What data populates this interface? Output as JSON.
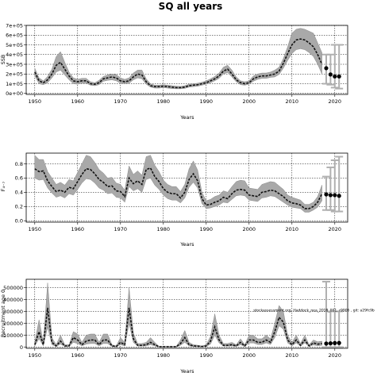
{
  "title": "SQ all years",
  "chart_data": [
    {
      "type": "line",
      "ylabel": "SSB",
      "xlabel": "Years",
      "xlim": [
        1948,
        2023
      ],
      "ylim": [
        -10000,
        700000
      ],
      "xticks": [
        "1950",
        "2000",
        "2010",
        "2020"
      ],
      "xtick_values": [
        1950,
        1960,
        1970,
        1980,
        1990,
        2000,
        2010,
        2020
      ],
      "xtick_labels": [
        "1950",
        "1960",
        "1970",
        "1980",
        "1990",
        "2000",
        "2010",
        "2020"
      ],
      "ytick_values": [
        0,
        100000,
        200000,
        300000,
        400000,
        500000,
        600000,
        700000
      ],
      "ytick_labels": [
        "0e+00",
        "1e+05",
        "2e+05",
        "3e+05",
        "4e+05",
        "5e+05",
        "6e+05",
        "7e+05"
      ],
      "grid": true,
      "x": [
        1950,
        1951,
        1952,
        1953,
        1954,
        1955,
        1956,
        1957,
        1958,
        1959,
        1960,
        1961,
        1962,
        1963,
        1964,
        1965,
        1966,
        1967,
        1968,
        1969,
        1970,
        1971,
        1972,
        1973,
        1974,
        1975,
        1976,
        1977,
        1978,
        1979,
        1980,
        1981,
        1982,
        1983,
        1984,
        1985,
        1986,
        1987,
        1988,
        1989,
        1990,
        1991,
        1992,
        1993,
        1994,
        1995,
        1996,
        1997,
        1998,
        1999,
        2000,
        2001,
        2002,
        2003,
        2004,
        2005,
        2006,
        2007,
        2008,
        2009,
        2010,
        2011,
        2012,
        2013,
        2014,
        2015,
        2016,
        2017
      ],
      "series": [
        {
          "values": [
            220000,
            130000,
            110000,
            140000,
            200000,
            290000,
            320000,
            250000,
            180000,
            130000,
            120000,
            130000,
            130000,
            100000,
            95000,
            110000,
            150000,
            160000,
            170000,
            160000,
            130000,
            120000,
            130000,
            170000,
            200000,
            190000,
            120000,
            80000,
            70000,
            70000,
            75000,
            70000,
            65000,
            60000,
            60000,
            65000,
            80000,
            85000,
            90000,
            100000,
            110000,
            130000,
            150000,
            180000,
            230000,
            250000,
            200000,
            140000,
            110000,
            100000,
            110000,
            150000,
            170000,
            180000,
            180000,
            190000,
            200000,
            230000,
            310000,
            410000,
            500000,
            550000,
            560000,
            550000,
            520000,
            480000,
            400000,
            300000
          ],
          "lower": [
            180000,
            100000,
            90000,
            110000,
            160000,
            220000,
            240000,
            190000,
            140000,
            100000,
            95000,
            105000,
            105000,
            85000,
            80000,
            90000,
            125000,
            135000,
            140000,
            130000,
            105000,
            100000,
            105000,
            140000,
            160000,
            150000,
            95000,
            65000,
            55000,
            55000,
            60000,
            55000,
            50000,
            48000,
            48000,
            52000,
            65000,
            70000,
            75000,
            85000,
            95000,
            110000,
            130000,
            155000,
            200000,
            215000,
            170000,
            120000,
            90000,
            85000,
            95000,
            125000,
            145000,
            155000,
            155000,
            165000,
            170000,
            195000,
            260000,
            340000,
            410000,
            450000,
            460000,
            450000,
            420000,
            380000,
            300000,
            200000
          ],
          "upper": [
            260000,
            160000,
            130000,
            175000,
            250000,
            380000,
            430000,
            320000,
            220000,
            160000,
            145000,
            155000,
            155000,
            120000,
            110000,
            135000,
            175000,
            190000,
            200000,
            195000,
            160000,
            145000,
            160000,
            210000,
            240000,
            240000,
            150000,
            100000,
            85000,
            85000,
            90000,
            85000,
            80000,
            75000,
            72000,
            80000,
            95000,
            100000,
            105000,
            115000,
            130000,
            150000,
            175000,
            210000,
            270000,
            290000,
            240000,
            170000,
            130000,
            120000,
            130000,
            180000,
            200000,
            210000,
            210000,
            220000,
            240000,
            270000,
            360000,
            480000,
            620000,
            660000,
            670000,
            660000,
            640000,
            620000,
            520000,
            420000
          ]
        }
      ],
      "projection": {
        "x": [
          2018,
          2019,
          2020,
          2021
        ],
        "values": [
          260000,
          195000,
          175000,
          175000
        ],
        "lower": [
          100000,
          90000,
          60000,
          50000
        ],
        "upper": [
          400000,
          400000,
          500000,
          500000
        ]
      }
    },
    {
      "type": "line",
      "ylabel": "F₄₋₇",
      "xlabel": "Years",
      "xlim": [
        1948,
        2023
      ],
      "ylim": [
        -0.02,
        0.95
      ],
      "xtick_values": [
        1950,
        1960,
        1970,
        1980,
        1990,
        2000,
        2010,
        2020
      ],
      "xtick_labels": [
        "1950",
        "1960",
        "1970",
        "1980",
        "1990",
        "2000",
        "2010",
        "2020"
      ],
      "ytick_values": [
        0.0,
        0.2,
        0.4,
        0.6,
        0.8
      ],
      "ytick_labels": [
        "0.0",
        "0.2",
        "0.4",
        "0.6",
        "0.8"
      ],
      "grid": true,
      "x": [
        1950,
        1951,
        1952,
        1953,
        1954,
        1955,
        1956,
        1957,
        1958,
        1959,
        1960,
        1961,
        1962,
        1963,
        1964,
        1965,
        1966,
        1967,
        1968,
        1969,
        1970,
        1971,
        1972,
        1973,
        1974,
        1975,
        1976,
        1977,
        1978,
        1979,
        1980,
        1981,
        1982,
        1983,
        1984,
        1985,
        1986,
        1987,
        1988,
        1989,
        1990,
        1991,
        1992,
        1993,
        1994,
        1995,
        1996,
        1997,
        1998,
        1999,
        2000,
        2001,
        2002,
        2003,
        2004,
        2005,
        2006,
        2007,
        2008,
        2009,
        2010,
        2011,
        2012,
        2013,
        2014,
        2015,
        2016,
        2017
      ],
      "series": [
        {
          "values": [
            0.73,
            0.69,
            0.7,
            0.56,
            0.48,
            0.41,
            0.43,
            0.4,
            0.47,
            0.45,
            0.55,
            0.65,
            0.73,
            0.72,
            0.66,
            0.58,
            0.54,
            0.48,
            0.49,
            0.42,
            0.41,
            0.34,
            0.6,
            0.52,
            0.56,
            0.51,
            0.72,
            0.74,
            0.62,
            0.55,
            0.45,
            0.4,
            0.38,
            0.38,
            0.32,
            0.4,
            0.58,
            0.66,
            0.56,
            0.31,
            0.22,
            0.23,
            0.26,
            0.28,
            0.33,
            0.31,
            0.38,
            0.43,
            0.44,
            0.43,
            0.36,
            0.35,
            0.34,
            0.4,
            0.41,
            0.43,
            0.42,
            0.38,
            0.34,
            0.28,
            0.25,
            0.24,
            0.22,
            0.17,
            0.17,
            0.2,
            0.26,
            0.38
          ],
          "lower": [
            0.6,
            0.57,
            0.58,
            0.46,
            0.39,
            0.33,
            0.35,
            0.32,
            0.38,
            0.36,
            0.44,
            0.53,
            0.59,
            0.58,
            0.53,
            0.46,
            0.43,
            0.38,
            0.39,
            0.33,
            0.32,
            0.26,
            0.48,
            0.42,
            0.45,
            0.4,
            0.58,
            0.6,
            0.5,
            0.44,
            0.36,
            0.31,
            0.29,
            0.29,
            0.25,
            0.32,
            0.47,
            0.54,
            0.46,
            0.24,
            0.17,
            0.18,
            0.2,
            0.22,
            0.26,
            0.25,
            0.3,
            0.35,
            0.36,
            0.35,
            0.29,
            0.28,
            0.27,
            0.32,
            0.33,
            0.35,
            0.34,
            0.3,
            0.26,
            0.22,
            0.19,
            0.18,
            0.17,
            0.12,
            0.12,
            0.15,
            0.19,
            0.28
          ],
          "upper": [
            0.92,
            0.86,
            0.86,
            0.69,
            0.6,
            0.51,
            0.54,
            0.5,
            0.58,
            0.56,
            0.68,
            0.8,
            0.92,
            0.9,
            0.82,
            0.72,
            0.67,
            0.6,
            0.61,
            0.53,
            0.51,
            0.43,
            0.77,
            0.65,
            0.7,
            0.64,
            0.9,
            0.92,
            0.78,
            0.69,
            0.57,
            0.51,
            0.48,
            0.48,
            0.41,
            0.51,
            0.73,
            0.84,
            0.71,
            0.4,
            0.28,
            0.3,
            0.34,
            0.36,
            0.42,
            0.4,
            0.48,
            0.55,
            0.57,
            0.56,
            0.46,
            0.45,
            0.44,
            0.51,
            0.53,
            0.55,
            0.54,
            0.49,
            0.44,
            0.36,
            0.33,
            0.31,
            0.29,
            0.23,
            0.23,
            0.26,
            0.34,
            0.5
          ]
        }
      ],
      "projection": {
        "x": [
          2018,
          2019,
          2020,
          2021
        ],
        "values": [
          0.37,
          0.36,
          0.36,
          0.35
        ],
        "lower": [
          0.15,
          0.15,
          0.13,
          0.13
        ],
        "upper": [
          0.62,
          0.75,
          0.85,
          0.9
        ]
      }
    },
    {
      "type": "line",
      "ylabel": "Recruitment age 0",
      "xlabel": "Years",
      "xlim": [
        1948,
        2023
      ],
      "ylim": [
        -10000,
        570000
      ],
      "xtick_values": [
        1950,
        1960,
        1970,
        1980,
        1990,
        2000,
        2010,
        2020
      ],
      "xtick_labels": [
        "1950",
        "1960",
        "1970",
        "1980",
        "1990",
        "2000",
        "2010",
        "2020"
      ],
      "ytick_values": [
        0,
        100000,
        200000,
        300000,
        400000,
        500000
      ],
      "ytick_labels": [
        "0",
        "100000",
        "200000",
        "300000",
        "400000",
        "500000"
      ],
      "grid": true,
      "annotation": "stockassessment.org, Haddock_nea_2018_001, r9906 , git: a29fc9b",
      "x": [
        1950,
        1951,
        1952,
        1953,
        1954,
        1955,
        1956,
        1957,
        1958,
        1959,
        1960,
        1961,
        1962,
        1963,
        1964,
        1965,
        1966,
        1967,
        1968,
        1969,
        1970,
        1971,
        1972,
        1973,
        1974,
        1975,
        1976,
        1977,
        1978,
        1979,
        1980,
        1981,
        1982,
        1983,
        1984,
        1985,
        1986,
        1987,
        1988,
        1989,
        1990,
        1991,
        1992,
        1993,
        1994,
        1995,
        1996,
        1997,
        1998,
        1999,
        2000,
        2001,
        2002,
        2003,
        2004,
        2005,
        2006,
        2007,
        2008,
        2009,
        2010,
        2011,
        2012,
        2013,
        2014,
        2015,
        2016,
        2017
      ],
      "series": [
        {
          "values": [
            20000,
            130000,
            20000,
            330000,
            40000,
            10000,
            50000,
            10000,
            10000,
            80000,
            60000,
            20000,
            50000,
            60000,
            60000,
            20000,
            60000,
            60000,
            10000,
            5000,
            40000,
            20000,
            330000,
            70000,
            15000,
            15000,
            20000,
            40000,
            20000,
            3000,
            3000,
            3000,
            3000,
            3000,
            30000,
            80000,
            20000,
            10000,
            8000,
            5000,
            10000,
            50000,
            170000,
            60000,
            15000,
            15000,
            20000,
            10000,
            40000,
            10000,
            60000,
            60000,
            40000,
            40000,
            60000,
            40000,
            130000,
            250000,
            210000,
            60000,
            20000,
            60000,
            15000,
            60000,
            10000,
            35000,
            25000,
            30000
          ],
          "lower": [
            10000,
            70000,
            10000,
            170000,
            20000,
            5000,
            25000,
            5000,
            5000,
            40000,
            30000,
            10000,
            25000,
            30000,
            30000,
            10000,
            30000,
            30000,
            5000,
            2000,
            20000,
            10000,
            200000,
            40000,
            8000,
            8000,
            10000,
            20000,
            10000,
            1500,
            1500,
            1500,
            1500,
            1500,
            15000,
            40000,
            10000,
            5000,
            4000,
            2500,
            5000,
            25000,
            100000,
            35000,
            8000,
            8000,
            10000,
            5000,
            20000,
            5000,
            35000,
            35000,
            22000,
            22000,
            35000,
            22000,
            80000,
            180000,
            150000,
            35000,
            10000,
            35000,
            8000,
            35000,
            5000,
            18000,
            12000,
            15000
          ],
          "upper": [
            40000,
            230000,
            40000,
            540000,
            80000,
            20000,
            100000,
            20000,
            20000,
            130000,
            110000,
            40000,
            100000,
            110000,
            110000,
            40000,
            110000,
            110000,
            20000,
            10000,
            80000,
            40000,
            500000,
            120000,
            30000,
            30000,
            40000,
            80000,
            40000,
            6000,
            6000,
            6000,
            6000,
            6000,
            60000,
            140000,
            40000,
            20000,
            16000,
            10000,
            20000,
            90000,
            280000,
            100000,
            30000,
            30000,
            40000,
            20000,
            70000,
            20000,
            100000,
            100000,
            70000,
            70000,
            100000,
            70000,
            200000,
            350000,
            300000,
            100000,
            40000,
            100000,
            30000,
            100000,
            20000,
            60000,
            45000,
            50000
          ]
        }
      ],
      "projection": {
        "x": [
          2018,
          2019,
          2020,
          2021
        ],
        "values": [
          30000,
          32000,
          34000,
          35000
        ],
        "lower": [
          0,
          0,
          0,
          0
        ],
        "upper": [
          550000,
          300000,
          300000,
          300000
        ]
      }
    }
  ]
}
